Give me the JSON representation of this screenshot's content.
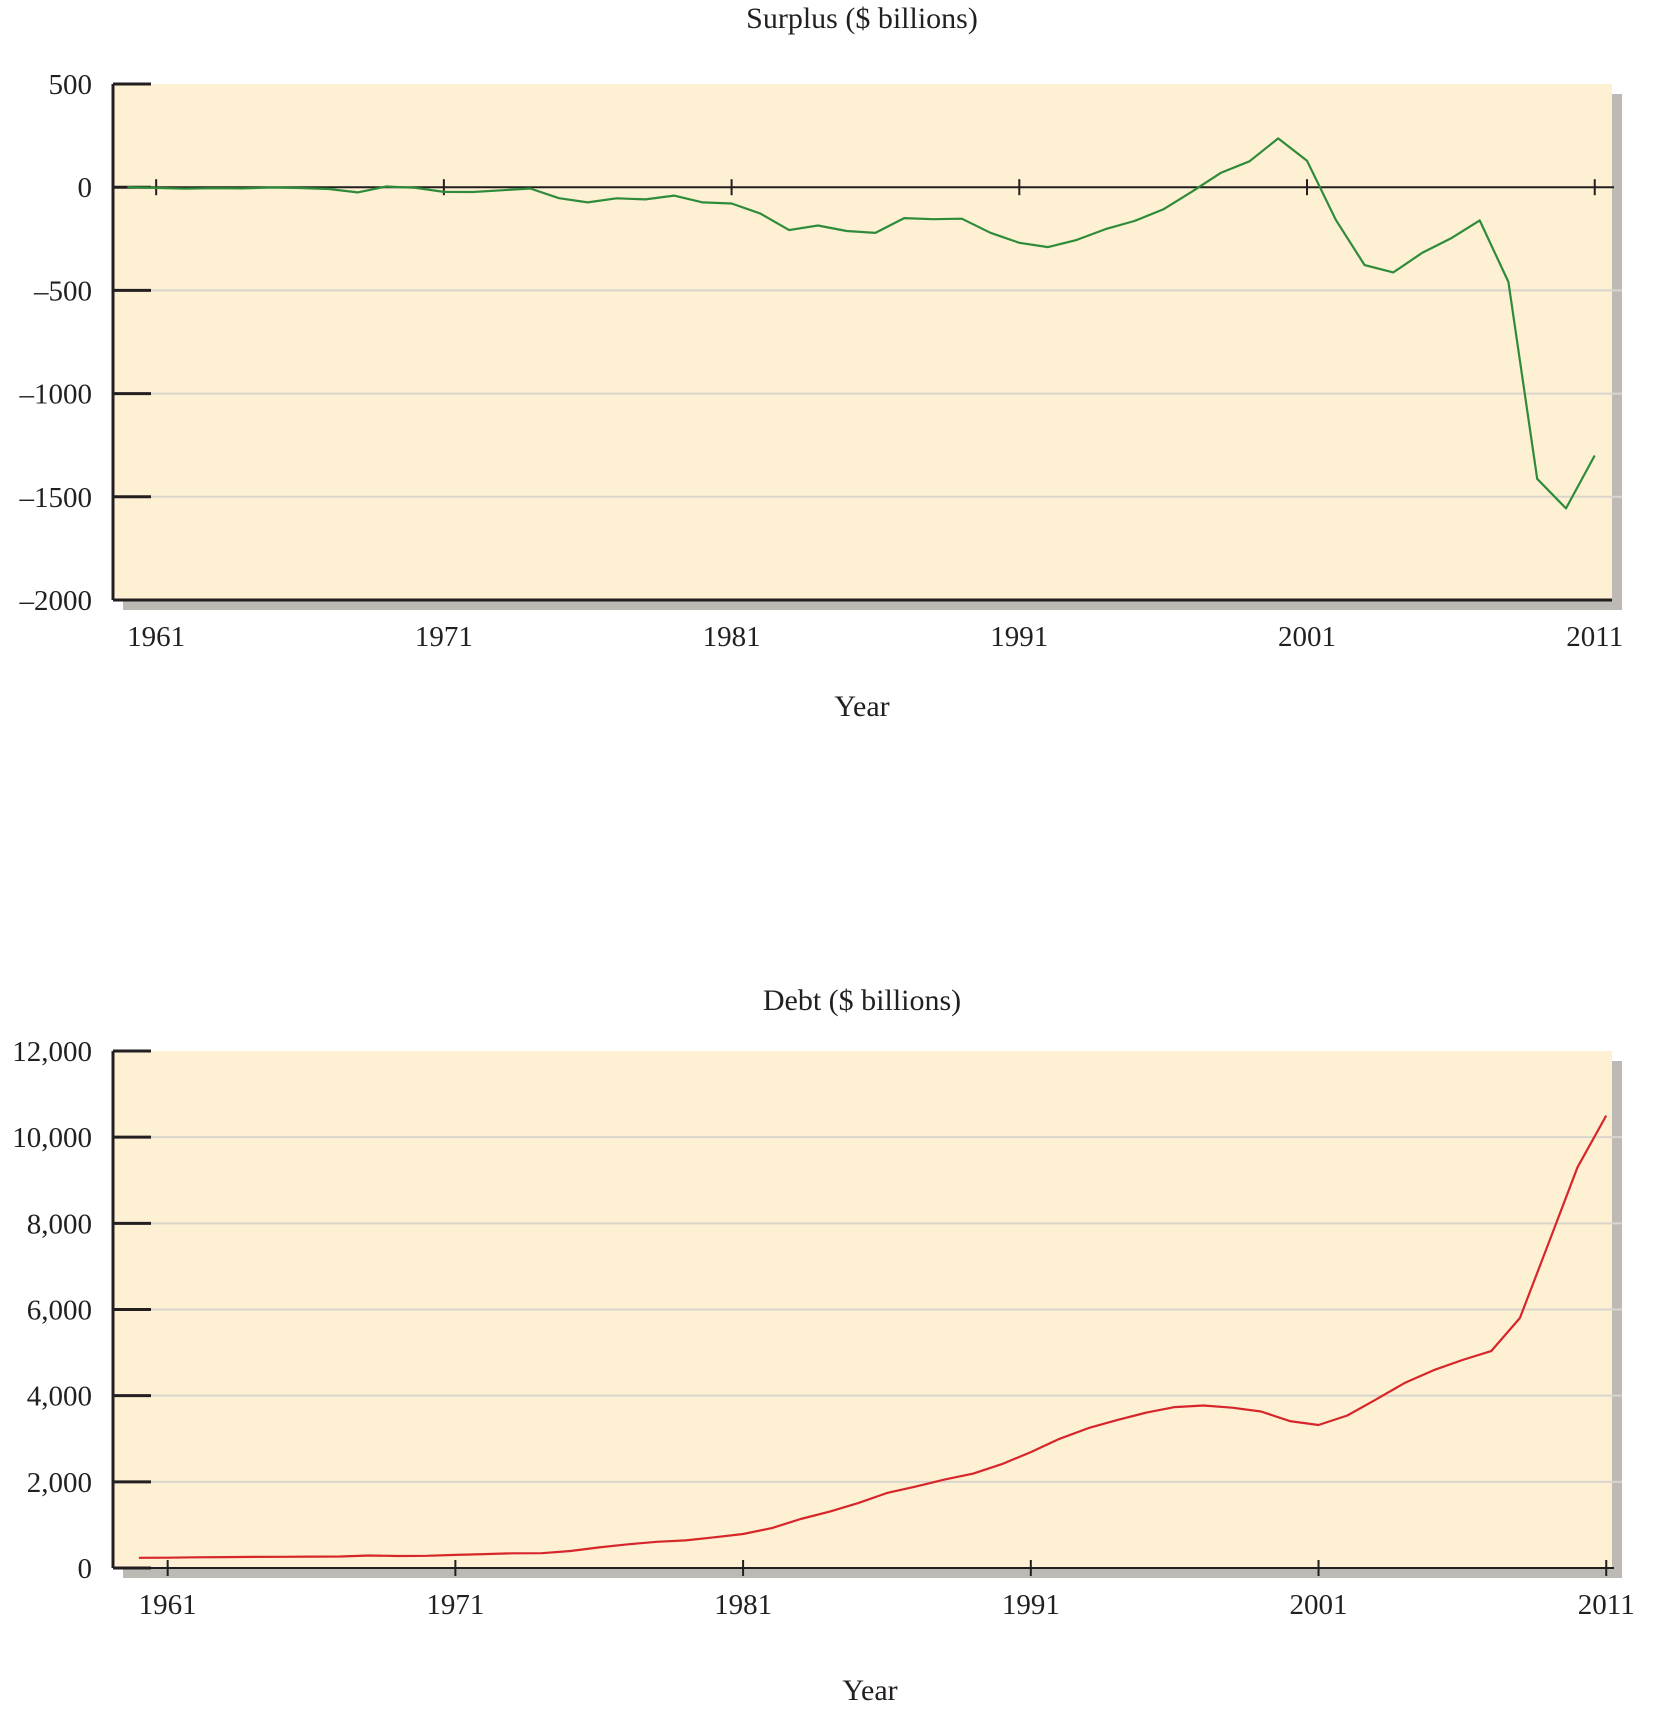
{
  "chart_data": [
    {
      "type": "line",
      "title": "Surplus ($ billions)",
      "xlabel": "Year",
      "ylabel": "",
      "xlim": [
        1959.5,
        2011.6
      ],
      "ylim": [
        -2000,
        500
      ],
      "x_ticks": [
        1961,
        1971,
        1981,
        1991,
        2001,
        2011
      ],
      "y_ticks": [
        500,
        0,
        -500,
        -1000,
        -1500,
        -2000
      ],
      "y_tick_labels": [
        "500",
        "0",
        "–500",
        "–1000",
        "–1500",
        "–2000"
      ],
      "grid": true,
      "zero_line": true,
      "colors": {
        "background": "#fdf0d3",
        "line": "#2e8b3a",
        "grid": "#d9d4cc",
        "axis": "#231f20"
      },
      "series": [
        {
          "x": [
            1960,
            1961,
            1962,
            1963,
            1964,
            1965,
            1966,
            1967,
            1968,
            1969,
            1970,
            1971,
            1972,
            1973,
            1974,
            1975,
            1976,
            1977,
            1978,
            1979,
            1980,
            1981,
            1982,
            1983,
            1984,
            1985,
            1986,
            1987,
            1988,
            1989,
            1990,
            1991,
            1992,
            1993,
            1994,
            1995,
            1996,
            1997,
            1998,
            1999,
            2000,
            2001,
            2002,
            2003,
            2004,
            2005,
            2006,
            2007,
            2008,
            2009,
            2010,
            2011
          ],
          "values": [
            0.3,
            -3.3,
            -7.1,
            -4.8,
            -5.9,
            -1.4,
            -3.7,
            -8.6,
            -25.2,
            3.2,
            -2.8,
            -23.0,
            -23.4,
            -14.9,
            -6.1,
            -53.2,
            -73.7,
            -53.7,
            -59.2,
            -40.7,
            -73.8,
            -79.0,
            -128.0,
            -207.8,
            -185.4,
            -212.3,
            -221.2,
            -149.7,
            -155.2,
            -152.6,
            -221.0,
            -269.2,
            -290.3,
            -255.1,
            -203.2,
            -164.0,
            -107.4,
            -21.9,
            69.3,
            125.6,
            236.2,
            128.2,
            -157.8,
            -377.6,
            -412.7,
            -318.3,
            -248.2,
            -160.7,
            -458.6,
            -1412.7,
            -1556.0,
            -1300.0
          ]
        }
      ]
    },
    {
      "type": "line",
      "title": "Debt ($ billions)",
      "xlabel": "Year",
      "ylabel": "",
      "xlim": [
        1959.1,
        2011.2
      ],
      "ylim": [
        0,
        12000
      ],
      "x_ticks": [
        1961,
        1971,
        1981,
        1991,
        2001,
        2011
      ],
      "y_ticks": [
        12000,
        10000,
        8000,
        6000,
        4000,
        2000,
        0
      ],
      "y_tick_labels": [
        "12,000",
        "10,000",
        "8,000",
        "6,000",
        "4,000",
        "2,000",
        "0"
      ],
      "grid": true,
      "zero_line": false,
      "colors": {
        "background": "#fdf0d3",
        "line": "#d7262a",
        "grid": "#d9d4cc",
        "axis": "#231f20"
      },
      "series": [
        {
          "x": [
            1960,
            1961,
            1962,
            1963,
            1964,
            1965,
            1966,
            1967,
            1968,
            1969,
            1970,
            1971,
            1972,
            1973,
            1974,
            1975,
            1976,
            1977,
            1978,
            1979,
            1980,
            1981,
            1982,
            1983,
            1984,
            1985,
            1986,
            1987,
            1988,
            1989,
            1990,
            1991,
            1992,
            1993,
            1994,
            1995,
            1996,
            1997,
            1998,
            1999,
            2000,
            2001,
            2002,
            2003,
            2004,
            2005,
            2006,
            2007,
            2008,
            2009,
            2010,
            2011
          ],
          "values": [
            237,
            238,
            248,
            254,
            257,
            261,
            264,
            267,
            290,
            278,
            283,
            303,
            322,
            341,
            344,
            395,
            477,
            549,
            607,
            640,
            712,
            789,
            925,
            1137,
            1307,
            1507,
            1741,
            1890,
            2051,
            2191,
            2412,
            2689,
            3000,
            3248,
            3433,
            3604,
            3734,
            3772,
            3721,
            3632,
            3410,
            3320,
            3540,
            3913,
            4296,
            4592,
            4829,
            5035,
            5803,
            7545,
            9300,
            10500
          ]
        }
      ]
    }
  ]
}
